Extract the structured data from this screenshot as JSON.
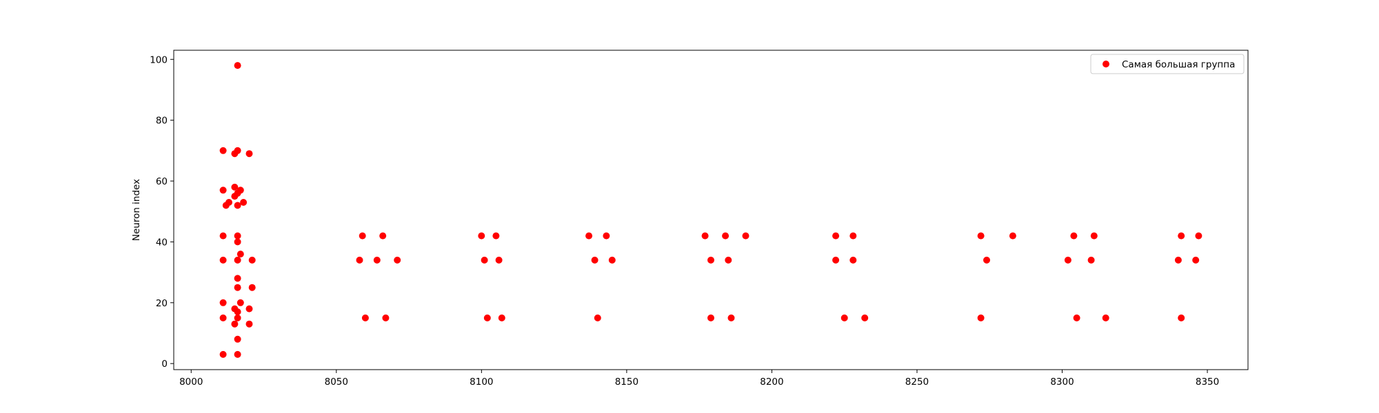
{
  "chart_data": {
    "type": "scatter",
    "title": "",
    "xlabel": "",
    "ylabel": "Neuron index",
    "xlim": [
      7994,
      8364
    ],
    "ylim": [
      -2,
      103
    ],
    "xticks": [
      8000,
      8050,
      8100,
      8150,
      8200,
      8250,
      8300,
      8350
    ],
    "yticks": [
      0,
      20,
      40,
      60,
      80,
      100
    ],
    "grid": false,
    "legend": {
      "position": "upper right"
    },
    "series": [
      {
        "name": "Самая большая группа",
        "color": "#ff0000",
        "points": [
          [
            8011,
            3
          ],
          [
            8016,
            3
          ],
          [
            8016,
            8
          ],
          [
            8015,
            13
          ],
          [
            8020,
            13
          ],
          [
            8011,
            15
          ],
          [
            8016,
            15
          ],
          [
            8016,
            17
          ],
          [
            8015,
            18
          ],
          [
            8020,
            18
          ],
          [
            8011,
            20
          ],
          [
            8017,
            20
          ],
          [
            8016,
            25
          ],
          [
            8021,
            25
          ],
          [
            8016,
            28
          ],
          [
            8011,
            34
          ],
          [
            8016,
            34
          ],
          [
            8021,
            34
          ],
          [
            8017,
            36
          ],
          [
            8016,
            40
          ],
          [
            8011,
            42
          ],
          [
            8016,
            42
          ],
          [
            8012,
            52
          ],
          [
            8013,
            53
          ],
          [
            8016,
            52
          ],
          [
            8018,
            53
          ],
          [
            8015,
            55
          ],
          [
            8016,
            56
          ],
          [
            8011,
            57
          ],
          [
            8015,
            58
          ],
          [
            8017,
            57
          ],
          [
            8015,
            69
          ],
          [
            8011,
            70
          ],
          [
            8016,
            70
          ],
          [
            8020,
            69
          ],
          [
            8016,
            98
          ],
          [
            8059,
            42
          ],
          [
            8066,
            42
          ],
          [
            8058,
            34
          ],
          [
            8064,
            34
          ],
          [
            8071,
            34
          ],
          [
            8060,
            15
          ],
          [
            8067,
            15
          ],
          [
            8100,
            42
          ],
          [
            8105,
            42
          ],
          [
            8101,
            34
          ],
          [
            8106,
            34
          ],
          [
            8102,
            15
          ],
          [
            8107,
            15
          ],
          [
            8137,
            42
          ],
          [
            8143,
            42
          ],
          [
            8139,
            34
          ],
          [
            8145,
            34
          ],
          [
            8140,
            15
          ],
          [
            8177,
            42
          ],
          [
            8184,
            42
          ],
          [
            8191,
            42
          ],
          [
            8179,
            34
          ],
          [
            8185,
            34
          ],
          [
            8179,
            15
          ],
          [
            8186,
            15
          ],
          [
            8222,
            42
          ],
          [
            8228,
            42
          ],
          [
            8222,
            34
          ],
          [
            8228,
            34
          ],
          [
            8225,
            15
          ],
          [
            8232,
            15
          ],
          [
            8272,
            42
          ],
          [
            8283,
            42
          ],
          [
            8274,
            34
          ],
          [
            8272,
            15
          ],
          [
            8304,
            42
          ],
          [
            8311,
            42
          ],
          [
            8302,
            34
          ],
          [
            8310,
            34
          ],
          [
            8305,
            15
          ],
          [
            8315,
            15
          ],
          [
            8341,
            42
          ],
          [
            8347,
            42
          ],
          [
            8340,
            34
          ],
          [
            8346,
            34
          ],
          [
            8341,
            15
          ]
        ]
      }
    ]
  }
}
